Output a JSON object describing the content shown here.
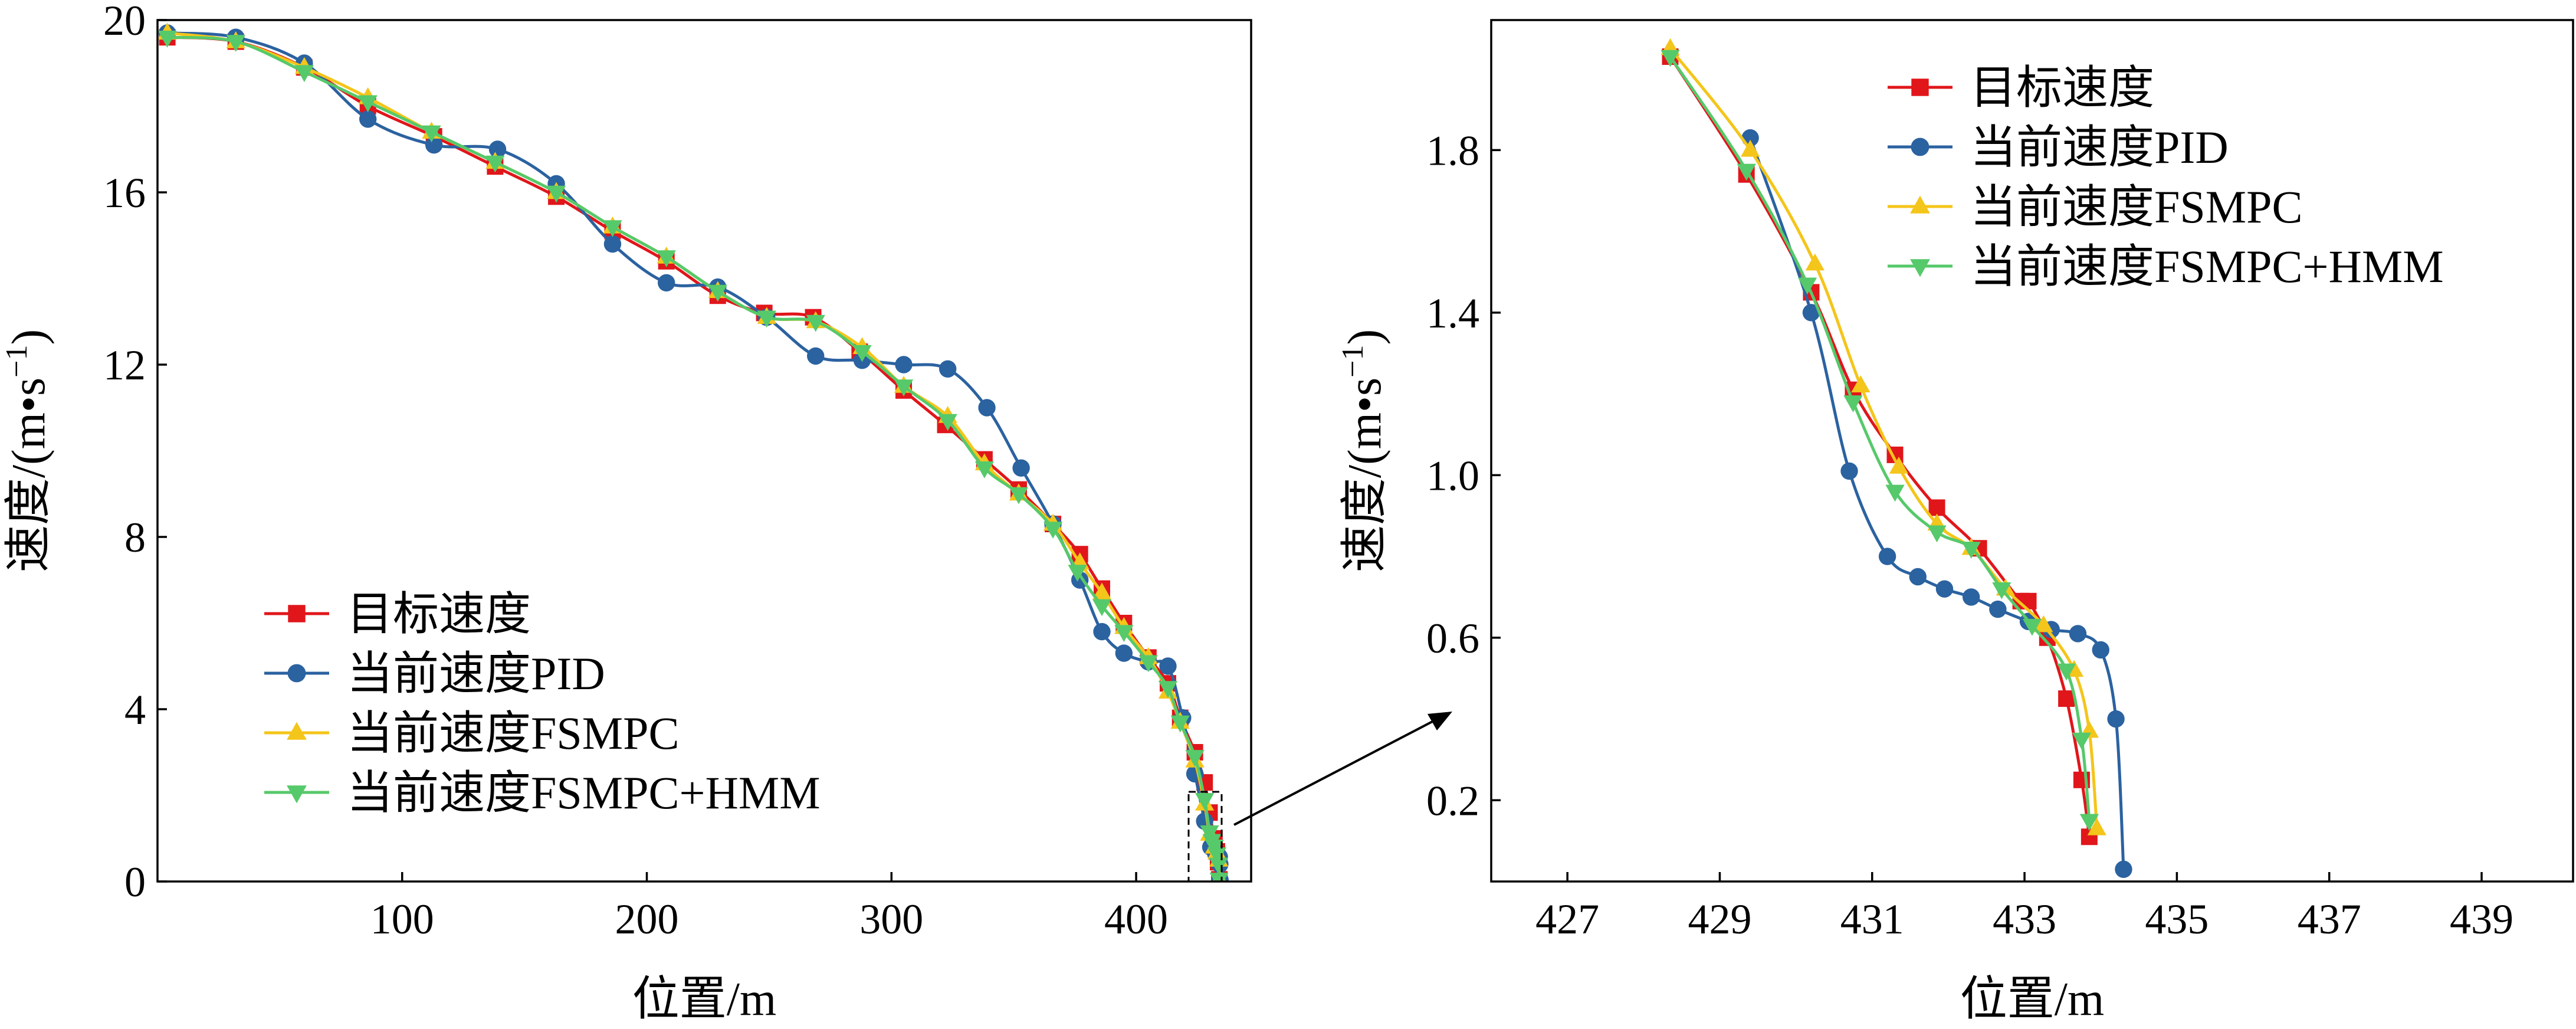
{
  "colors": {
    "target": "#e0161b",
    "pid": "#2b62a0",
    "fsmpc": "#f4c51a",
    "fsmpc_hmm": "#56c96a"
  },
  "chart_data": [
    {
      "type": "line",
      "xlabel": "位置/m",
      "ylabel": "速度/(m•s⁻¹)",
      "ylabel_base": "速度/(m•s",
      "ylabel_sup": "−1",
      "ylabel_close": ")",
      "xlim": [
        0,
        447
      ],
      "ylim": [
        0,
        20
      ],
      "xticks": [
        100,
        200,
        300,
        400
      ],
      "yticks": [
        0,
        4,
        8,
        12,
        16,
        20
      ],
      "legend_position": "lower-left",
      "series": [
        {
          "name": "目标速度",
          "key": "target",
          "marker": "square",
          "points": [
            [
              4,
              19.6
            ],
            [
              32,
              19.5
            ],
            [
              60,
              18.9
            ],
            [
              86,
              18.0
            ],
            [
              113,
              17.3
            ],
            [
              138,
              16.6
            ],
            [
              163,
              15.9
            ],
            [
              186,
              15.1
            ],
            [
              208,
              14.4
            ],
            [
              229,
              13.6
            ],
            [
              248,
              13.2
            ],
            [
              268,
              13.1
            ],
            [
              287,
              12.3
            ],
            [
              305,
              11.4
            ],
            [
              322,
              10.6
            ],
            [
              338,
              9.8
            ],
            [
              352,
              9.1
            ],
            [
              366,
              8.3
            ],
            [
              377,
              7.6
            ],
            [
              386,
              6.8
            ],
            [
              395,
              6.0
            ],
            [
              405,
              5.2
            ],
            [
              413,
              4.6
            ],
            [
              418,
              3.8
            ],
            [
              424,
              3.0
            ],
            [
              428,
              2.3
            ],
            [
              430,
              1.6
            ],
            [
              432,
              1.0
            ],
            [
              433,
              0.7
            ],
            [
              433.5,
              0.45
            ],
            [
              434,
              0.05
            ]
          ]
        },
        {
          "name": "当前速度PID",
          "key": "pid",
          "marker": "circle",
          "points": [
            [
              4,
              19.7
            ],
            [
              32,
              19.6
            ],
            [
              60,
              19.0
            ],
            [
              86,
              17.7
            ],
            [
              113,
              17.1
            ],
            [
              139,
              17.0
            ],
            [
              163,
              16.2
            ],
            [
              186,
              14.8
            ],
            [
              208,
              13.9
            ],
            [
              229,
              13.8
            ],
            [
              249,
              13.1
            ],
            [
              269,
              12.2
            ],
            [
              288,
              12.1
            ],
            [
              305,
              12.0
            ],
            [
              323,
              11.9
            ],
            [
              339,
              11.0
            ],
            [
              353,
              9.6
            ],
            [
              366,
              8.3
            ],
            [
              377,
              7.0
            ],
            [
              386,
              5.8
            ],
            [
              395,
              5.3
            ],
            [
              405,
              5.1
            ],
            [
              413,
              5.0
            ],
            [
              419,
              3.8
            ],
            [
              424,
              2.5
            ],
            [
              428,
              1.4
            ],
            [
              430.5,
              0.8
            ],
            [
              432.5,
              0.65
            ],
            [
              434,
              0.57
            ],
            [
              434.2,
              0.4
            ],
            [
              434.3,
              0.03
            ]
          ]
        },
        {
          "name": "当前速度FSMPC",
          "key": "fsmpc",
          "marker": "triangle-up",
          "points": [
            [
              4,
              19.7
            ],
            [
              32,
              19.5
            ],
            [
              60,
              18.9
            ],
            [
              86,
              18.2
            ],
            [
              112,
              17.4
            ],
            [
              138,
              16.7
            ],
            [
              163,
              16.0
            ],
            [
              186,
              15.2
            ],
            [
              208,
              14.5
            ],
            [
              229,
              13.7
            ],
            [
              249,
              13.1
            ],
            [
              269,
              13.0
            ],
            [
              288,
              12.4
            ],
            [
              305,
              11.5
            ],
            [
              323,
              10.8
            ],
            [
              338,
              9.7
            ],
            [
              352,
              9.0
            ],
            [
              366,
              8.3
            ],
            [
              377,
              7.4
            ],
            [
              386,
              6.7
            ],
            [
              395,
              5.9
            ],
            [
              405,
              5.2
            ],
            [
              413,
              4.4
            ],
            [
              418,
              3.7
            ],
            [
              424,
              2.8
            ],
            [
              428,
              1.8
            ],
            [
              430,
              1.1
            ],
            [
              432,
              0.8
            ],
            [
              433,
              0.67
            ],
            [
              433.8,
              0.5
            ],
            [
              434,
              0.05
            ]
          ]
        },
        {
          "name": "当前速度FSMPC+HMM",
          "key": "fsmpc_hmm",
          "marker": "triangle-down",
          "points": [
            [
              4,
              19.6
            ],
            [
              32,
              19.5
            ],
            [
              60,
              18.8
            ],
            [
              86,
              18.1
            ],
            [
              112,
              17.4
            ],
            [
              138,
              16.7
            ],
            [
              163,
              16.0
            ],
            [
              186,
              15.2
            ],
            [
              208,
              14.5
            ],
            [
              229,
              13.7
            ],
            [
              249,
              13.1
            ],
            [
              269,
              13.0
            ],
            [
              288,
              12.3
            ],
            [
              305,
              11.5
            ],
            [
              323,
              10.7
            ],
            [
              338,
              9.6
            ],
            [
              352,
              9.0
            ],
            [
              366,
              8.2
            ],
            [
              376,
              7.2
            ],
            [
              386,
              6.4
            ],
            [
              395,
              5.8
            ],
            [
              405,
              5.1
            ],
            [
              413,
              4.5
            ],
            [
              418,
              3.7
            ],
            [
              424,
              2.9
            ],
            [
              428,
              1.9
            ],
            [
              430,
              1.15
            ],
            [
              431,
              0.95
            ],
            [
              432,
              0.82
            ],
            [
              433,
              0.64
            ],
            [
              433.7,
              0.4
            ],
            [
              433.9,
              0.05
            ]
          ]
        }
      ]
    },
    {
      "type": "line",
      "xlabel": "位置/m",
      "ylabel": "速度/(m•s⁻¹)",
      "ylabel_base": "速度/(m•s",
      "ylabel_sup": "−1",
      "ylabel_close": ")",
      "xlim": [
        426,
        440.2
      ],
      "ylim": [
        0,
        2.12
      ],
      "xticks": [
        427,
        429,
        431,
        433,
        435,
        437,
        439
      ],
      "yticks": [
        0.2,
        0.6,
        1.0,
        1.4,
        1.8
      ],
      "ytick_labels": [
        "0.2",
        "0.6",
        "1.0",
        "1.4",
        "1.8"
      ],
      "legend_position": "top-right",
      "series": [
        {
          "name": "目标速度",
          "key": "target",
          "marker": "square",
          "points": [
            [
              428.35,
              2.03
            ],
            [
              429.35,
              1.74
            ],
            [
              430.2,
              1.45
            ],
            [
              430.75,
              1.21
            ],
            [
              431.3,
              1.05
            ],
            [
              431.85,
              0.92
            ],
            [
              432.4,
              0.82
            ],
            [
              432.95,
              0.69
            ],
            [
              433.05,
              0.69
            ],
            [
              433.3,
              0.6
            ],
            [
              433.55,
              0.45
            ],
            [
              433.75,
              0.25
            ],
            [
              433.85,
              0.11
            ]
          ]
        },
        {
          "name": "当前速度PID",
          "key": "pid",
          "marker": "circle",
          "points": [
            [
              429.4,
              1.83
            ],
            [
              430.2,
              1.4
            ],
            [
              430.7,
              1.01
            ],
            [
              431.2,
              0.8
            ],
            [
              431.6,
              0.75
            ],
            [
              431.95,
              0.72
            ],
            [
              432.3,
              0.7
            ],
            [
              432.65,
              0.67
            ],
            [
              433.05,
              0.64
            ],
            [
              433.35,
              0.62
            ],
            [
              433.7,
              0.61
            ],
            [
              434.0,
              0.57
            ],
            [
              434.2,
              0.4
            ],
            [
              434.3,
              0.03
            ]
          ]
        },
        {
          "name": "当前速度FSMPC",
          "key": "fsmpc",
          "marker": "triangle-up",
          "points": [
            [
              428.35,
              2.05
            ],
            [
              429.4,
              1.8
            ],
            [
              430.25,
              1.52
            ],
            [
              430.85,
              1.22
            ],
            [
              431.35,
              1.02
            ],
            [
              431.85,
              0.88
            ],
            [
              432.3,
              0.82
            ],
            [
              432.75,
              0.72
            ],
            [
              433.25,
              0.63
            ],
            [
              433.65,
              0.52
            ],
            [
              433.85,
              0.37
            ],
            [
              433.95,
              0.13
            ]
          ]
        },
        {
          "name": "当前速度FSMPC+HMM",
          "key": "fsmpc_hmm",
          "marker": "triangle-down",
          "points": [
            [
              428.35,
              2.03
            ],
            [
              429.35,
              1.75
            ],
            [
              430.15,
              1.47
            ],
            [
              430.75,
              1.18
            ],
            [
              431.3,
              0.96
            ],
            [
              431.85,
              0.86
            ],
            [
              432.3,
              0.82
            ],
            [
              432.7,
              0.72
            ],
            [
              433.1,
              0.63
            ],
            [
              433.55,
              0.52
            ],
            [
              433.75,
              0.35
            ],
            [
              433.85,
              0.15
            ]
          ]
        }
      ]
    }
  ]
}
